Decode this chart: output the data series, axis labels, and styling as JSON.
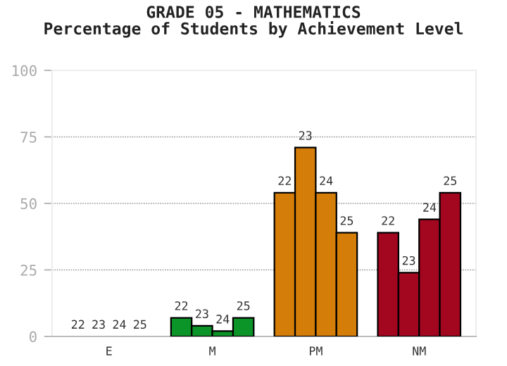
{
  "chart_data": {
    "type": "bar",
    "title": "GRADE 05 - MATHEMATICS\nPercentage of Students by Achievement Level",
    "categories": [
      "E",
      "M",
      "PM",
      "NM"
    ],
    "series": [
      {
        "name": "22",
        "colors": [
          null,
          "#0b9428",
          "#d47d08",
          "#a3071f"
        ],
        "values": [
          0,
          7,
          54,
          39
        ]
      },
      {
        "name": "23",
        "colors": [
          null,
          "#0b9428",
          "#d47d08",
          "#a3071f"
        ],
        "values": [
          0,
          4,
          71,
          24
        ]
      },
      {
        "name": "24",
        "colors": [
          null,
          "#0b9428",
          "#d47d08",
          "#a3071f"
        ],
        "values": [
          0,
          2,
          54,
          44
        ]
      },
      {
        "name": "25",
        "colors": [
          null,
          "#0b9428",
          "#d47d08",
          "#a3071f"
        ],
        "values": [
          0,
          7,
          39,
          54
        ]
      }
    ],
    "ylim": [
      0,
      100
    ],
    "yticks": [
      0,
      25,
      50,
      75,
      100
    ],
    "grid": "y",
    "legend": false
  }
}
